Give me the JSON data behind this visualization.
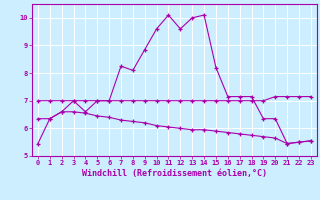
{
  "xlabel": "Windchill (Refroidissement éolien,°C)",
  "background_color": "#cceeff",
  "grid_color": "#ffffff",
  "line_color": "#aa00aa",
  "line1_x": [
    0,
    1,
    2,
    3,
    4,
    5,
    6,
    7,
    8,
    9,
    10,
    11,
    12,
    13,
    14,
    15,
    16,
    17,
    18,
    19,
    20,
    21,
    22,
    23
  ],
  "line1_y": [
    5.45,
    6.35,
    6.6,
    7.0,
    6.6,
    7.0,
    7.0,
    8.25,
    8.1,
    8.85,
    9.6,
    10.1,
    9.6,
    10.0,
    10.1,
    8.2,
    7.15,
    7.15,
    7.15,
    6.35,
    6.35,
    5.45,
    5.5,
    5.55
  ],
  "line2_x": [
    0,
    1,
    2,
    3,
    4,
    5,
    6,
    7,
    8,
    9,
    10,
    11,
    12,
    13,
    14,
    15,
    16,
    17,
    18,
    19,
    20,
    21,
    22,
    23
  ],
  "line2_y": [
    7.0,
    7.0,
    7.0,
    7.0,
    7.0,
    7.0,
    7.0,
    7.0,
    7.0,
    7.0,
    7.0,
    7.0,
    7.0,
    7.0,
    7.0,
    7.0,
    7.0,
    7.0,
    7.0,
    7.0,
    7.15,
    7.15,
    7.15,
    7.15
  ],
  "line3_x": [
    0,
    1,
    2,
    3,
    4,
    5,
    6,
    7,
    8,
    9,
    10,
    11,
    12,
    13,
    14,
    15,
    16,
    17,
    18,
    19,
    20,
    21,
    22,
    23
  ],
  "line3_y": [
    6.35,
    6.35,
    6.6,
    6.6,
    6.55,
    6.45,
    6.4,
    6.3,
    6.25,
    6.2,
    6.1,
    6.05,
    6.0,
    5.95,
    5.95,
    5.9,
    5.85,
    5.8,
    5.75,
    5.7,
    5.65,
    5.45,
    5.5,
    5.55
  ],
  "ylim": [
    5.0,
    10.5
  ],
  "xlim": [
    -0.5,
    23.5
  ],
  "yticks": [
    5,
    6,
    7,
    8,
    9,
    10
  ],
  "xticks": [
    0,
    1,
    2,
    3,
    4,
    5,
    6,
    7,
    8,
    9,
    10,
    11,
    12,
    13,
    14,
    15,
    16,
    17,
    18,
    19,
    20,
    21,
    22,
    23
  ],
  "tick_fontsize": 5.0,
  "label_fontsize": 6.0
}
